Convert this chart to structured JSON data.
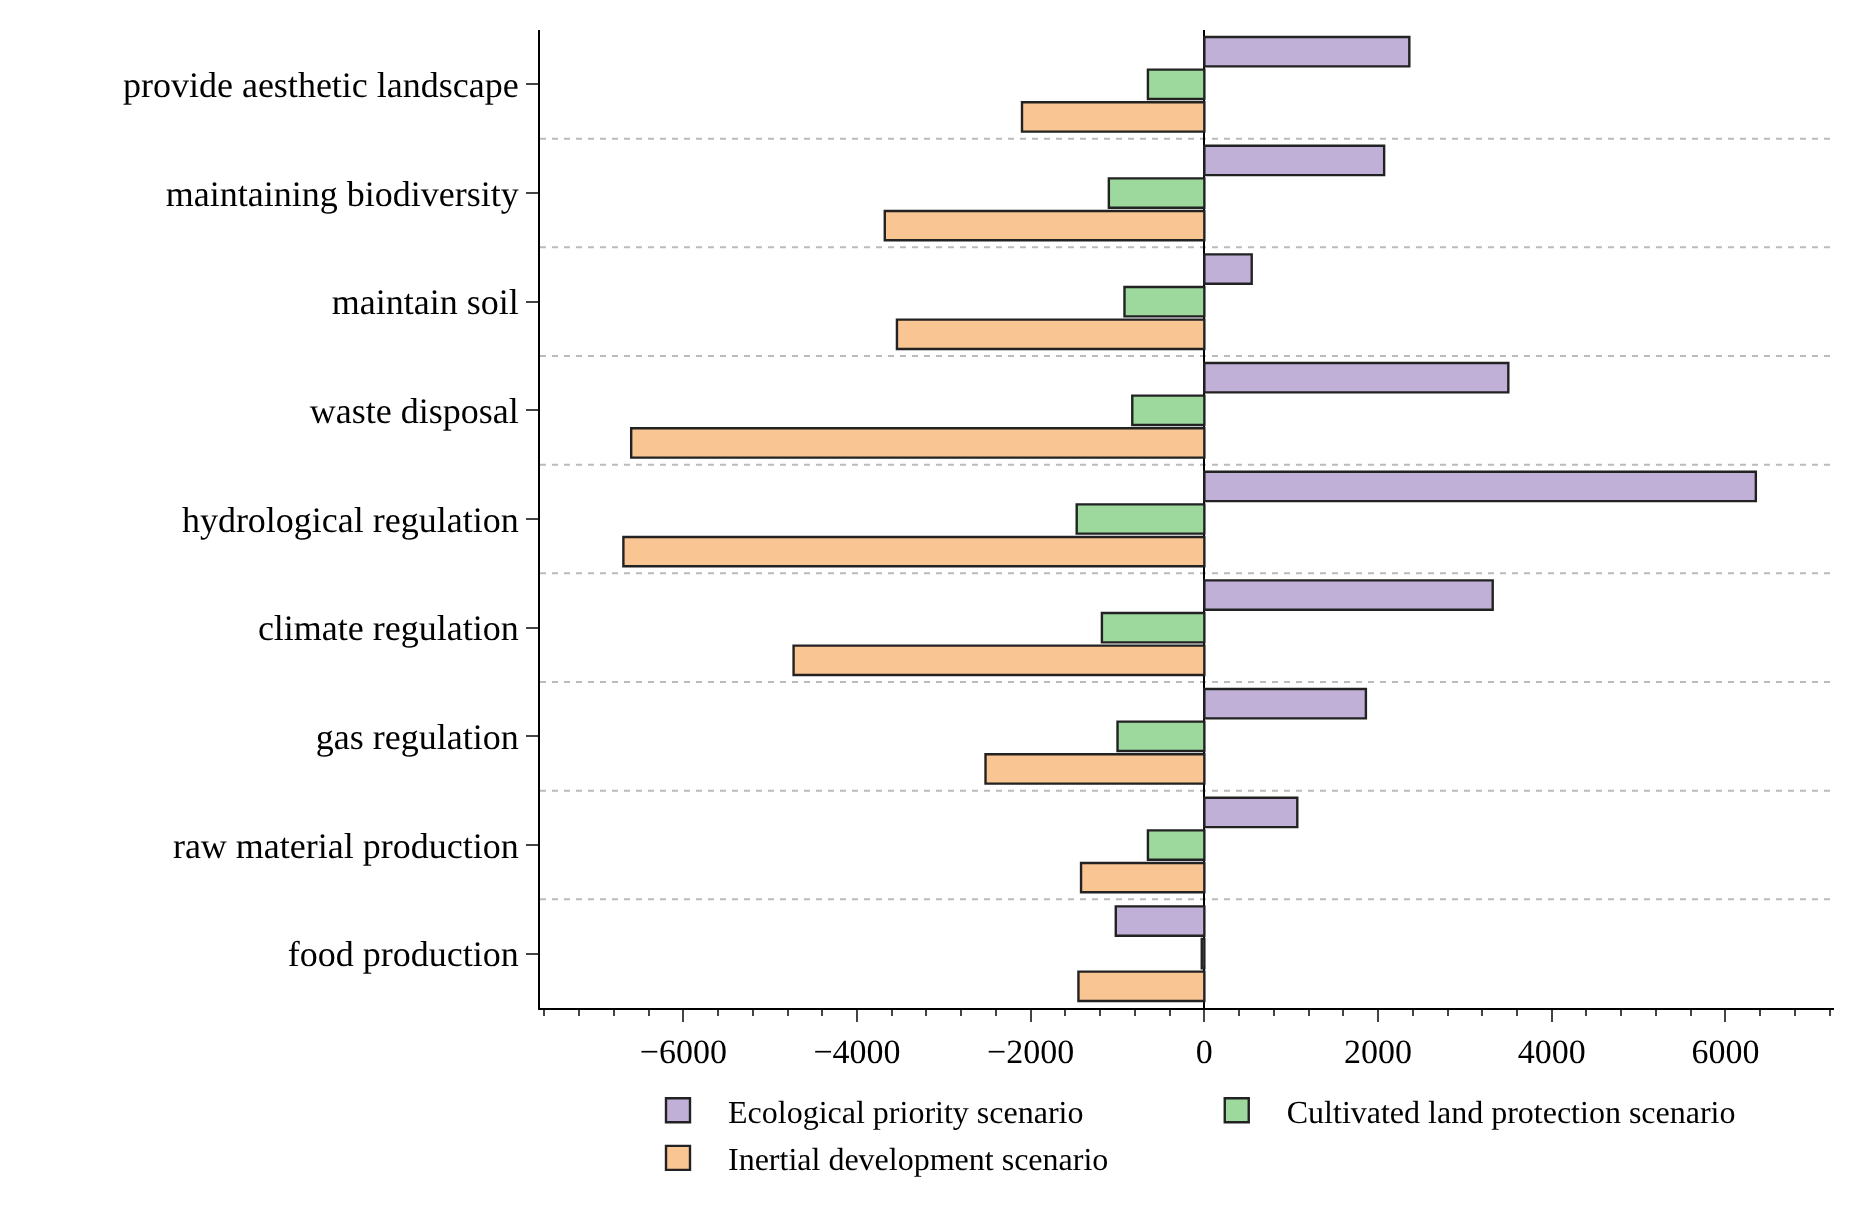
{
  "chart_data": {
    "type": "bar",
    "orientation": "horizontal",
    "categories": [
      "provide aesthetic landscape",
      "maintaining biodiversity",
      "maintain soil",
      "waste disposal",
      "hydrological regulation",
      "climate regulation",
      "gas regulation",
      "raw material production",
      "food production"
    ],
    "series": [
      {
        "name": "Ecological priority scenario",
        "color": "#c0b0d8",
        "values": [
          2360,
          2070,
          545,
          3500,
          6350,
          3320,
          1860,
          1070,
          -1020
        ]
      },
      {
        "name": "Cultivated land protection scenario",
        "color": "#9dd89d",
        "values": [
          -650,
          -1100,
          -920,
          -830,
          -1470,
          -1180,
          -1000,
          -650,
          -30
        ]
      },
      {
        "name": "Inertial development scenario",
        "color": "#f9c593",
        "values": [
          -2100,
          -3680,
          -3540,
          -6600,
          -6690,
          -4730,
          -2520,
          -1420,
          -1450
        ]
      }
    ],
    "xlim": [
      -7650,
      7250
    ],
    "xticks": [
      -6000,
      -4000,
      -2000,
      0,
      2000,
      4000,
      6000
    ],
    "grid": "y",
    "legend": "bottom"
  }
}
